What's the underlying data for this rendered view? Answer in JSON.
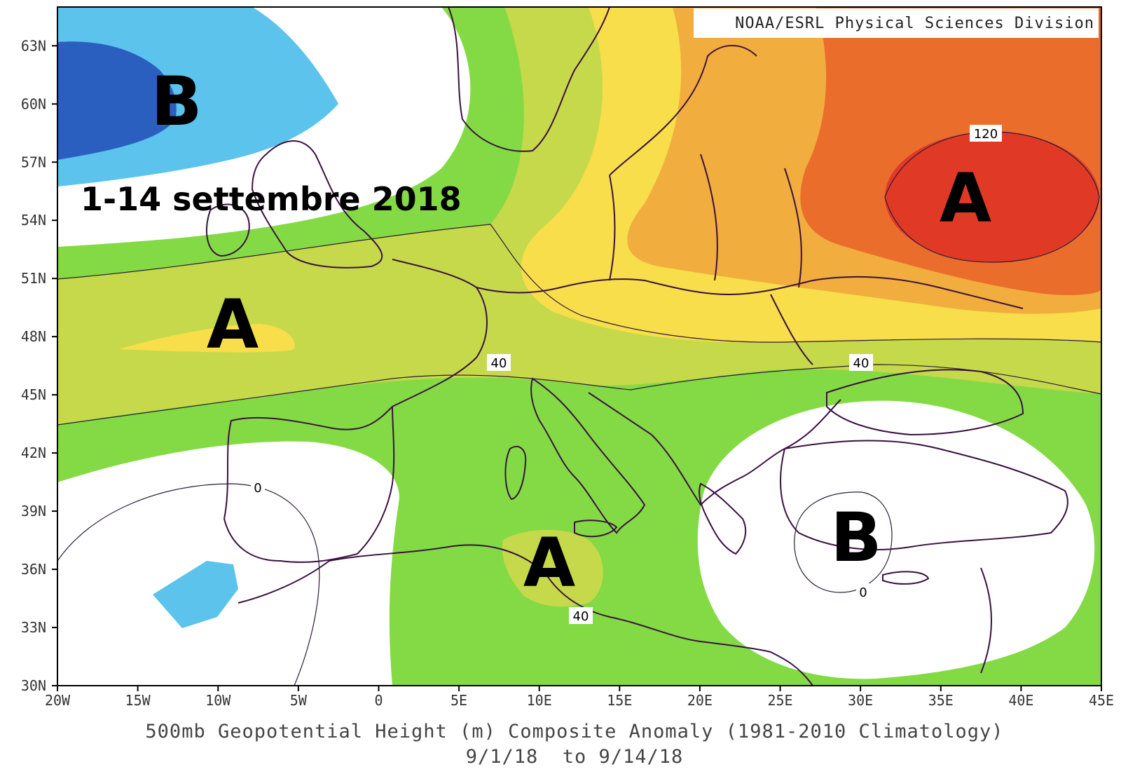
{
  "credit": "NOAA/ESRL Physical Sciences Division",
  "period": "1-14 settembre 2018",
  "caption": {
    "line1": "500mb Geopotential Height (m) Composite Anomaly (1981-2010 Climatology)",
    "line2": "9/1/18  to 9/14/18"
  },
  "axes": {
    "lat_labels": [
      "63N",
      "60N",
      "57N",
      "54N",
      "51N",
      "48N",
      "45N",
      "42N",
      "39N",
      "36N",
      "33N",
      "30N"
    ],
    "lon_labels": [
      "20W",
      "15W",
      "10W",
      "5W",
      "0",
      "5E",
      "10E",
      "15E",
      "20E",
      "25E",
      "30E",
      "35E",
      "40E",
      "45E"
    ],
    "lat_range": [
      30,
      65
    ],
    "lon_range": [
      -20,
      45
    ]
  },
  "contour_labels": {
    "c120": "120",
    "c40_west": "40",
    "c40_east": "40",
    "c40_south": "40",
    "c0_west": "0",
    "c0_east": "0"
  },
  "pressure_centers": {
    "low_north_atlantic": "B",
    "high_east_europe": "A",
    "high_biscay": "A",
    "high_tunisia": "A",
    "low_aegean": "B"
  },
  "colors": {
    "deep_blue": "#2b5fbf",
    "light_blue": "#5bc3ec",
    "neutral": "#ffffff",
    "green": "#84da45",
    "olive": "#c6d94a",
    "yellow": "#f7de4a",
    "orange": "#f1ad3d",
    "dark_orange": "#ea6d2c",
    "red": "#e03a26",
    "border": "#3a1040"
  }
}
